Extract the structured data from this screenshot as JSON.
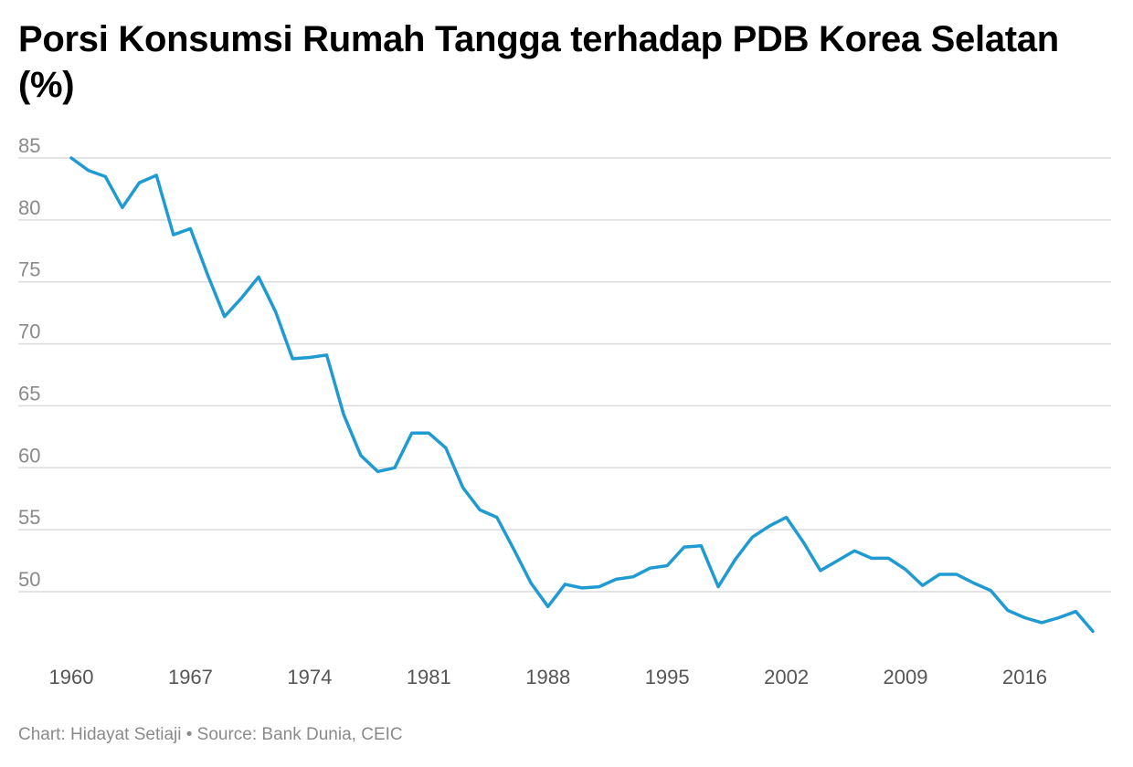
{
  "chart_data": {
    "type": "line",
    "title": "Porsi Konsumsi Rumah Tangga terhadap PDB Korea Selatan (%)",
    "xlabel": "",
    "ylabel": "",
    "x": [
      1960,
      1961,
      1962,
      1963,
      1964,
      1965,
      1966,
      1967,
      1968,
      1969,
      1970,
      1971,
      1972,
      1973,
      1974,
      1975,
      1976,
      1977,
      1978,
      1979,
      1980,
      1981,
      1982,
      1983,
      1984,
      1985,
      1986,
      1987,
      1988,
      1989,
      1990,
      1991,
      1992,
      1993,
      1994,
      1995,
      1996,
      1997,
      1998,
      1999,
      2000,
      2001,
      2002,
      2003,
      2004,
      2005,
      2006,
      2007,
      2008,
      2009,
      2010,
      2011,
      2012,
      2013,
      2014,
      2015,
      2016,
      2017,
      2018,
      2019,
      2020
    ],
    "series": [
      {
        "values": [
          85.0,
          84.0,
          83.5,
          81.0,
          83.0,
          83.6,
          78.8,
          79.3,
          75.6,
          72.2,
          73.7,
          75.4,
          72.6,
          68.8,
          68.9,
          69.1,
          64.3,
          61.0,
          59.7,
          60.0,
          62.8,
          62.8,
          61.6,
          58.4,
          56.6,
          56.0,
          53.4,
          50.7,
          48.8,
          50.6,
          50.3,
          50.4,
          51.0,
          51.2,
          51.9,
          52.1,
          53.6,
          53.7,
          50.4,
          52.6,
          54.4,
          55.3,
          56.0,
          54.0,
          51.7,
          52.5,
          53.3,
          52.7,
          52.7,
          51.8,
          50.5,
          51.4,
          51.4,
          50.7,
          50.1,
          48.5,
          47.9,
          47.5,
          47.9,
          48.4,
          46.8
        ]
      }
    ],
    "y_ticks": [
      "85",
      "80",
      "75",
      "70",
      "65",
      "60",
      "55",
      "50"
    ],
    "x_ticks": [
      "1960",
      "1967",
      "1974",
      "1981",
      "1988",
      "1995",
      "2002",
      "2009",
      "2016"
    ],
    "xlim": [
      1960,
      2020
    ],
    "ylim": [
      46.5,
      85.3
    ],
    "grid": true,
    "line_color": "#1f9bd1"
  },
  "footer": {
    "credit": "Chart: Hidayat Setiaji • Source: Bank Dunia, CEIC"
  }
}
